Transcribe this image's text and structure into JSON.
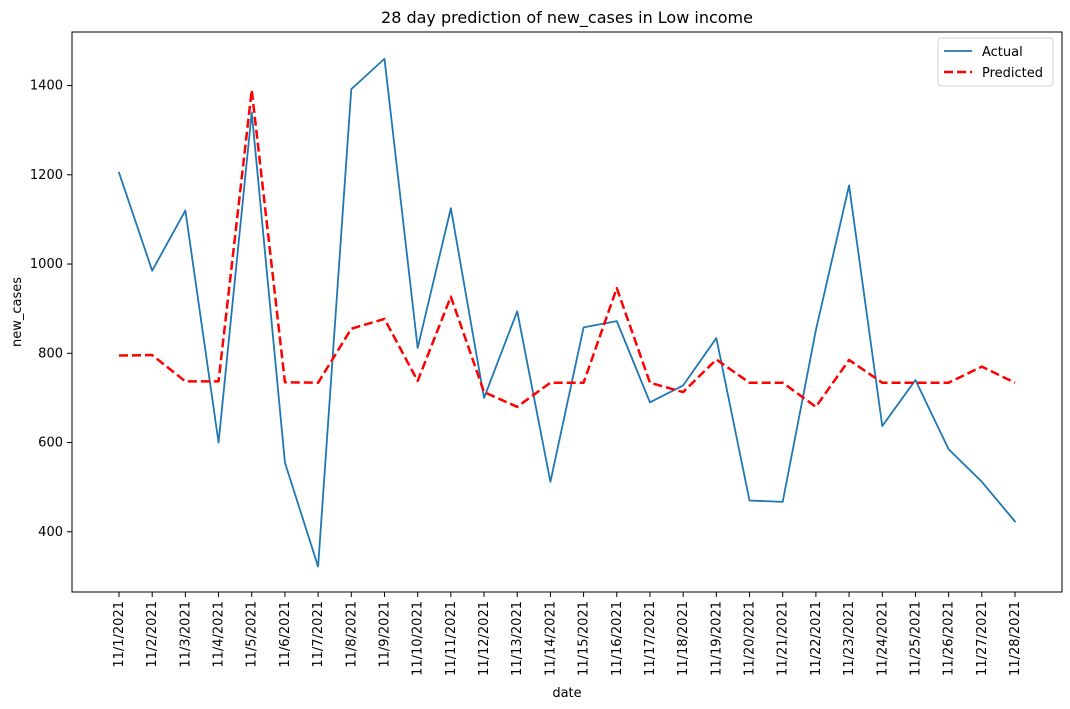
{
  "chart_data": {
    "type": "line",
    "title": "28 day prediction of new_cases in Low income",
    "xlabel": "date",
    "ylabel": "new_cases",
    "categories": [
      "11/1/2021",
      "11/2/2021",
      "11/3/2021",
      "11/4/2021",
      "11/5/2021",
      "11/6/2021",
      "11/7/2021",
      "11/8/2021",
      "11/9/2021",
      "11/10/2021",
      "11/11/2021",
      "11/12/2021",
      "11/13/2021",
      "11/14/2021",
      "11/15/2021",
      "11/16/2021",
      "11/17/2021",
      "11/18/2021",
      "11/19/2021",
      "11/20/2021",
      "11/21/2021",
      "11/22/2021",
      "11/23/2021",
      "11/24/2021",
      "11/25/2021",
      "11/26/2021",
      "11/27/2021",
      "11/28/2021"
    ],
    "yticks": [
      400,
      600,
      800,
      1000,
      1200,
      1400
    ],
    "ylim": [
      265,
      1520
    ],
    "grid": false,
    "legend_position": "top-right",
    "series": [
      {
        "name": "Actual",
        "color": "#1f77b4",
        "style": "solid",
        "values": [
          1205,
          985,
          1120,
          600,
          1340,
          555,
          322,
          1392,
          1460,
          812,
          1125,
          700,
          894,
          512,
          858,
          872,
          690,
          728,
          834,
          470,
          467,
          852,
          1176,
          637,
          740,
          585,
          512,
          423
        ]
      },
      {
        "name": "Predicted",
        "color": "#ff0000",
        "style": "dashed",
        "values": [
          795,
          796,
          737,
          737,
          1390,
          735,
          734,
          855,
          877,
          738,
          927,
          713,
          680,
          734,
          734,
          946,
          734,
          713,
          786,
          734,
          734,
          680,
          785,
          734,
          734,
          734,
          770,
          734
        ]
      }
    ]
  }
}
